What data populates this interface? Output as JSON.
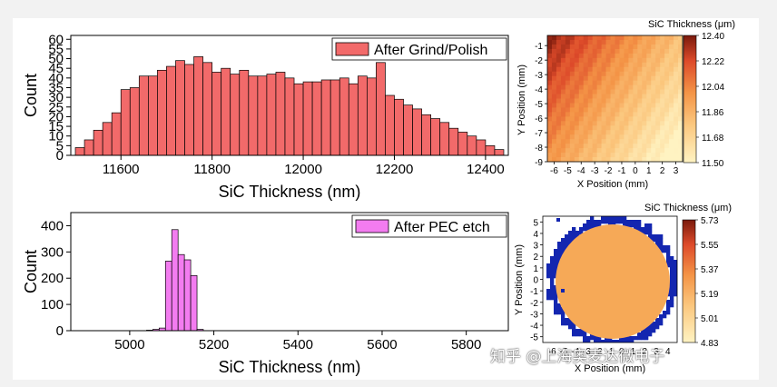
{
  "watermark": "知乎 @上海奥麦达微电子",
  "chart_data": [
    {
      "type": "bar",
      "id": "grind",
      "legend": "After Grind/Polish",
      "legend_position": "top-right",
      "xlabel": "SiC Thickness (nm)",
      "ylabel": "Count",
      "xlim": [
        11490,
        12450
      ],
      "ylim": [
        0,
        62
      ],
      "xticks": [
        11600,
        11800,
        12000,
        12200,
        12400
      ],
      "yticks": [
        0,
        5,
        10,
        15,
        20,
        25,
        30,
        35,
        40,
        45,
        50,
        55,
        60
      ],
      "bin_start": 11500,
      "bin_width": 20,
      "values": [
        4,
        8,
        13,
        17,
        22,
        34,
        35,
        41,
        41,
        44,
        46,
        49,
        47,
        51,
        48,
        43,
        45,
        42,
        44,
        41,
        41,
        42,
        43,
        40,
        37,
        38,
        38,
        39,
        39,
        40,
        37,
        41,
        40,
        48,
        31,
        29,
        26,
        24,
        21,
        19,
        17,
        14,
        12,
        10,
        8,
        5,
        3
      ],
      "color": "#f26a6a"
    },
    {
      "type": "bar",
      "id": "pec",
      "legend": "After PEC etch",
      "legend_position": "top-right",
      "xlabel": "SiC Thickness (nm)",
      "ylabel": "Count",
      "xlim": [
        4860,
        5900
      ],
      "ylim": [
        0,
        450
      ],
      "xticks": [
        5000,
        5200,
        5400,
        5600,
        5800
      ],
      "yticks": [
        0,
        100,
        200,
        300,
        400
      ],
      "bin_start": 5040,
      "bin_width": 15,
      "values": [
        2,
        5,
        10,
        265,
        385,
        290,
        270,
        210,
        5
      ],
      "color": "#f37cf0"
    },
    {
      "type": "heatmap",
      "id": "map1",
      "title": "SiC Thickness (μm)",
      "xlabel": "X Position (mm)",
      "ylabel": "Y Position (mm)",
      "xlim": [
        -6.5,
        3.5
      ],
      "ylim": [
        -9,
        -0.3
      ],
      "xticks": [
        -6,
        -5,
        -4,
        -3,
        -2,
        -1,
        0,
        1,
        2,
        3
      ],
      "yticks": [
        -1,
        -2,
        -3,
        -4,
        -5,
        -6,
        -7,
        -8,
        -9
      ],
      "colorbar_ticks": [
        "12.40",
        "12.22",
        "12.04",
        "11.86",
        "11.68",
        "11.50"
      ],
      "crange": [
        11.5,
        12.4
      ]
    },
    {
      "type": "heatmap",
      "id": "map2",
      "title": "SiC Thickness (μm)",
      "xlabel": "X Position (mm)",
      "ylabel": "Y Position (mm)",
      "yticks": [
        5,
        4,
        3,
        2,
        1,
        0,
        -1,
        -2,
        -3,
        -4,
        -5
      ],
      "xticks": [
        -6,
        -5,
        -4,
        -3,
        -2,
        -1,
        0,
        1,
        2,
        3,
        4
      ],
      "colorbar_ticks": [
        "5.73",
        "5.55",
        "5.37",
        "5.19",
        "5.01",
        "4.83"
      ],
      "crange": [
        4.83,
        5.73
      ]
    }
  ]
}
